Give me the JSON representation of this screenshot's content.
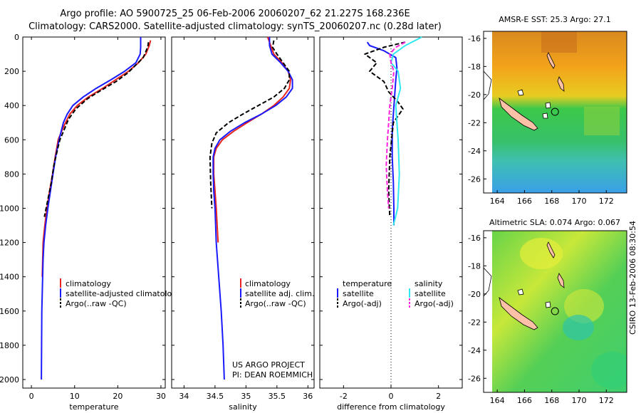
{
  "header": {
    "title_line1": "Argo profile: AO 5900725_25 06-Feb-2006 20060207_62 21.227S 168.236E",
    "title_line2": "Climatology: CARS2000. Satellite-adjusted climatology: synTS_20060207.nc (0.28d later)"
  },
  "side_stamp": "CSIRO 13-Feb-2006 08:30:54",
  "credits": {
    "line1": "US ARGO PROJECT",
    "line2": "PI: DEAN ROEMMICH"
  },
  "colors": {
    "climatology": "#e8221c",
    "satellite": "#1a1aff",
    "argo": "#000000",
    "satellite_salinity": "#30e8f0",
    "argo_salinity": "#ff22dd"
  },
  "chart_data": [
    {
      "id": "temperature",
      "type": "line",
      "xlabel": "temperature",
      "xlim": [
        -2,
        31
      ],
      "ylim": [
        2050,
        0
      ],
      "xticks": [
        0,
        10,
        20,
        30
      ],
      "yticks": [
        0,
        200,
        400,
        600,
        800,
        1000,
        1200,
        1400,
        1600,
        1800,
        2000
      ],
      "legend": {
        "position": "lower-right",
        "entries": [
          "climatology",
          "satellite-adjusted climatology",
          "Argo(..raw -QC)"
        ]
      },
      "series": [
        {
          "name": "climatology",
          "color": "#e8221c",
          "dashed": false,
          "x": [
            27.6,
            27.3,
            26.5,
            24.8,
            22.5,
            19.5,
            16.5,
            13.2,
            10.6,
            8.9,
            7.9,
            7.0,
            6.2,
            5.5,
            4.9,
            4.2,
            3.6,
            3.1,
            2.7,
            2.6,
            2.5
          ],
          "y": [
            20,
            50,
            100,
            150,
            200,
            250,
            300,
            350,
            400,
            450,
            500,
            550,
            600,
            700,
            800,
            900,
            1000,
            1100,
            1200,
            1300,
            1400
          ]
        },
        {
          "name": "satellite-adjusted climatology",
          "color": "#1a1aff",
          "dashed": false,
          "x": [
            25.3,
            25.3,
            25.3,
            25.2,
            24.2,
            21.6,
            18.4,
            15.0,
            12.0,
            9.6,
            8.3,
            7.4,
            6.4,
            5.6,
            5.0,
            4.4,
            3.8,
            3.3,
            2.9,
            2.7,
            2.6,
            2.5,
            2.4,
            2.35,
            2.3
          ],
          "y": [
            0,
            30,
            60,
            100,
            150,
            200,
            250,
            300,
            350,
            400,
            450,
            500,
            600,
            700,
            800,
            900,
            1000,
            1100,
            1200,
            1300,
            1400,
            1500,
            1600,
            1800,
            2000
          ]
        },
        {
          "name": "Argo(..raw -QC)",
          "color": "#000000",
          "dashed": true,
          "x": [
            27.1,
            27.0,
            26.6,
            25.9,
            24.3,
            22.3,
            19.6,
            16.2,
            13.0,
            10.3,
            8.6,
            7.6,
            6.6,
            6.1,
            5.2,
            4.6,
            3.8,
            3.0
          ],
          "y": [
            30,
            50,
            80,
            120,
            160,
            210,
            260,
            310,
            360,
            420,
            480,
            540,
            600,
            650,
            750,
            850,
            950,
            1050
          ]
        }
      ]
    },
    {
      "id": "salinity",
      "type": "line",
      "xlabel": "salinity",
      "xlim": [
        33.8,
        36.1
      ],
      "ylim": [
        2050,
        0
      ],
      "xticks": [
        34,
        34.5,
        35,
        35.5,
        36
      ],
      "legend": {
        "position": "lower-right",
        "entries": [
          "climatology",
          "satellite adj. clim.",
          "Argo(..raw -QC)"
        ]
      },
      "series": [
        {
          "name": "climatology",
          "color": "#e8221c",
          "dashed": false,
          "x": [
            35.35,
            35.4,
            35.45,
            35.58,
            35.68,
            35.72,
            35.7,
            35.6,
            35.45,
            35.25,
            35.02,
            34.8,
            34.62,
            34.52,
            34.48,
            34.48,
            34.5,
            34.52,
            34.55
          ],
          "y": [
            0,
            50,
            100,
            150,
            200,
            250,
            300,
            350,
            400,
            450,
            500,
            550,
            600,
            650,
            700,
            800,
            900,
            1000,
            1200
          ]
        },
        {
          "name": "satellite adj. clim.",
          "color": "#1a1aff",
          "dashed": false,
          "x": [
            35.38,
            35.38,
            35.42,
            35.56,
            35.68,
            35.75,
            35.75,
            35.65,
            35.48,
            35.25,
            34.98,
            34.75,
            34.58,
            34.5,
            34.47,
            34.47,
            34.48,
            34.5,
            34.52,
            34.56,
            34.6,
            34.63,
            34.65
          ],
          "y": [
            0,
            50,
            100,
            150,
            200,
            250,
            300,
            350,
            400,
            450,
            500,
            550,
            600,
            650,
            700,
            800,
            900,
            1000,
            1200,
            1400,
            1600,
            1800,
            2000
          ]
        },
        {
          "name": "Argo(..raw -QC)",
          "color": "#000000",
          "dashed": true,
          "x": [
            35.45,
            35.43,
            35.5,
            35.6,
            35.7,
            35.7,
            35.62,
            35.45,
            35.2,
            34.95,
            34.72,
            34.52,
            34.45,
            34.42,
            34.43,
            34.45
          ],
          "y": [
            20,
            60,
            100,
            150,
            200,
            250,
            300,
            350,
            400,
            450,
            500,
            560,
            620,
            700,
            850,
            1000
          ]
        }
      ]
    },
    {
      "id": "difference",
      "type": "line",
      "xlabel": "difference from climatology",
      "xlim": [
        -3,
        3
      ],
      "ylim": [
        2050,
        0
      ],
      "xticks": [
        -2,
        0,
        2
      ],
      "legend": {
        "position": "lower-right",
        "entries": [
          "temperature",
          "satellite",
          "Argo(-adj)",
          "salinity",
          "satellite",
          "Argo(-adj)"
        ]
      },
      "series": [
        {
          "name": "satellite",
          "color": "#1a1aff",
          "dashed": false,
          "x": [
            -1.0,
            -0.9,
            -0.3,
            0.2,
            0.25,
            0.2,
            0.15,
            0.1,
            0.05,
            0.05,
            0.1,
            0.12,
            0.12
          ],
          "y": [
            30,
            50,
            80,
            120,
            180,
            250,
            350,
            450,
            550,
            700,
            850,
            1000,
            1100
          ]
        },
        {
          "name": "Argo(-adj)",
          "color": "#000000",
          "dashed": true,
          "x": [
            0.6,
            -0.3,
            -1.1,
            -0.6,
            -0.9,
            -0.3,
            -0.1,
            0.3,
            0.5,
            0.1,
            -0.05,
            -0.1,
            -0.05
          ],
          "y": [
            30,
            60,
            100,
            150,
            200,
            260,
            320,
            380,
            420,
            500,
            700,
            900,
            1050
          ]
        },
        {
          "name": "satellite",
          "color": "#30e8f0",
          "dashed": false,
          "x": [
            1.3,
            0.6,
            0.1,
            0.0,
            0.3,
            0.4,
            0.2,
            0.25,
            0.3,
            0.35,
            0.28,
            0.1
          ],
          "y": [
            0,
            50,
            100,
            150,
            200,
            300,
            400,
            500,
            600,
            800,
            1000,
            1100
          ]
        },
        {
          "name": "Argo(-adj)",
          "color": "#ff22dd",
          "dashed": true,
          "x": [
            0.6,
            0.2,
            -0.05,
            0.0,
            0.12,
            0.05,
            -0.05,
            -0.1,
            -0.15,
            -0.2,
            -0.15,
            -0.1
          ],
          "y": [
            30,
            60,
            100,
            150,
            200,
            300,
            400,
            500,
            600,
            750,
            900,
            1000
          ]
        }
      ]
    },
    {
      "id": "sst-map",
      "type": "heatmap",
      "title": "AMSR-E SST: 25.3 Argo: 27.1",
      "xlim": [
        163,
        173.5
      ],
      "ylim": [
        -27,
        -15.5
      ],
      "xticks": [
        164,
        166,
        168,
        170,
        172
      ],
      "yticks": [
        -16,
        -18,
        -20,
        -22,
        -24,
        -26
      ],
      "marker": {
        "lon": 168.236,
        "lat": -21.227
      }
    },
    {
      "id": "sla-map",
      "type": "heatmap",
      "title": "Altimetric SLA: 0.074 Argo: 0.067",
      "xlim": [
        163,
        173.5
      ],
      "ylim": [
        -27,
        -15.5
      ],
      "xticks": [
        164,
        166,
        168,
        170,
        172
      ],
      "yticks": [
        -16,
        -18,
        -20,
        -22,
        -24,
        -26
      ],
      "marker": {
        "lon": 168.236,
        "lat": -21.227
      }
    }
  ]
}
